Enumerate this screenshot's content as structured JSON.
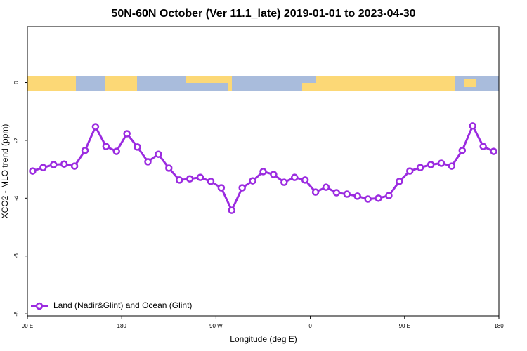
{
  "chart_data": {
    "type": "line",
    "title": "50N-60N October (Ver 11.1_late)   2019-01-01 to 2023-04-30",
    "x_label": "Longitude (deg E)",
    "y_label": "XCO2 - MLO trend (ppm)",
    "x": [
      95,
      105,
      115,
      125,
      135,
      145,
      155,
      165,
      175,
      185,
      195,
      205,
      215,
      225,
      235,
      245,
      255,
      265,
      275,
      285,
      295,
      305,
      315,
      325,
      335,
      345,
      355,
      365,
      375,
      385,
      395,
      405,
      415,
      425,
      435,
      445,
      455,
      465,
      475,
      485,
      495,
      505,
      515,
      525,
      535
    ],
    "series": [
      {
        "name": "Land (Nadir&Glint) and Ocean (Glint)",
        "color": "#9b2be0",
        "values": [
          -3.06,
          -2.94,
          -2.84,
          -2.82,
          -2.89,
          -2.35,
          -1.53,
          -2.21,
          -2.38,
          -1.77,
          -2.23,
          -2.74,
          -2.48,
          -2.96,
          -3.37,
          -3.33,
          -3.28,
          -3.42,
          -3.64,
          -4.42,
          -3.64,
          -3.4,
          -3.08,
          -3.18,
          -3.45,
          -3.28,
          -3.37,
          -3.79,
          -3.62,
          -3.81,
          -3.86,
          -3.93,
          -4.03,
          -4.0,
          -3.91,
          -3.42,
          -3.06,
          -2.94,
          -2.84,
          -2.79,
          -2.89,
          -2.35,
          -1.5,
          -2.21,
          -2.38
        ]
      }
    ],
    "xlim": [
      90,
      540
    ],
    "xticks": [
      {
        "value": 90,
        "label": "90 E"
      },
      180,
      {
        "value": 270,
        "label": "90 W"
      },
      {
        "value": 360,
        "label": "0"
      },
      {
        "value": 450,
        "label": "90 E"
      },
      {
        "value": 540,
        "label": "180"
      }
    ],
    "ylim": [
      -8.07,
      1.93
    ],
    "yticks": [
      0,
      -2,
      -4,
      -6,
      -8
    ],
    "legend": "bottom-left"
  }
}
